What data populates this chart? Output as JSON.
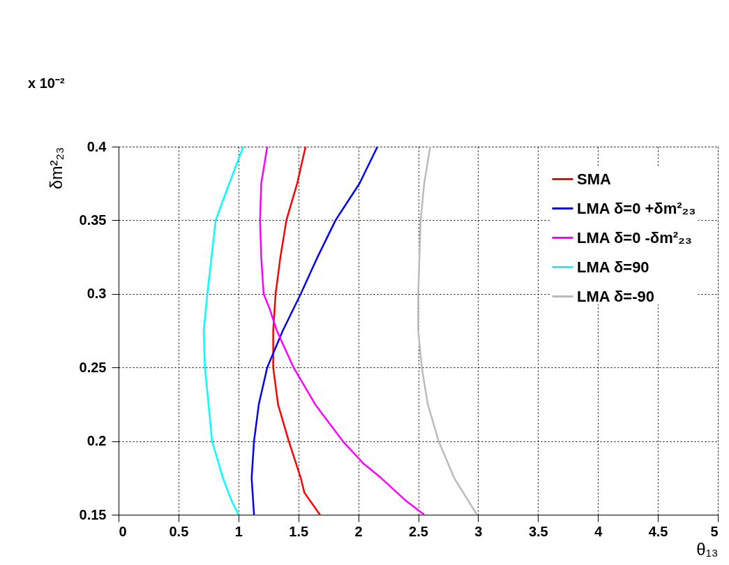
{
  "chart_data": {
    "type": "line",
    "xlabel": "θ₁₃",
    "ylabel": "δm²₂₃",
    "annotations": [
      "x 10⁻²"
    ],
    "xlim": [
      0,
      5
    ],
    "xticks": [
      0,
      0.5,
      1,
      1.5,
      2,
      2.5,
      3,
      3.5,
      4,
      4.5,
      5
    ],
    "ylim": [
      0.15,
      0.4
    ],
    "yticks": [
      0.15,
      0.2,
      0.25,
      0.3,
      0.35,
      0.4
    ],
    "grid": true,
    "legend": "top right",
    "marker": "none",
    "line_style": "solid",
    "series": [
      {
        "name": "SMA",
        "color": "#ff0000",
        "x": [
          1.56,
          1.49,
          1.4,
          1.35,
          1.31,
          1.29,
          1.29,
          1.33,
          1.42,
          1.52,
          1.55,
          1.68
        ],
        "values": [
          0.4,
          0.375,
          0.35,
          0.325,
          0.3,
          0.275,
          0.25,
          0.225,
          0.2,
          0.175,
          0.165,
          0.15
        ]
      },
      {
        "name": "LMA δ=0 +δm²₂₃",
        "color": "#0000ff",
        "x": [
          2.16,
          2.01,
          1.81,
          1.66,
          1.52,
          1.37,
          1.24,
          1.17,
          1.13,
          1.11,
          1.13
        ],
        "values": [
          0.4,
          0.375,
          0.35,
          0.325,
          0.3,
          0.275,
          0.25,
          0.225,
          0.2,
          0.175,
          0.15
        ]
      },
      {
        "name": "LMA δ=0 -δm²₂₃",
        "color": "#ff00ff",
        "x": [
          1.24,
          1.19,
          1.18,
          1.19,
          1.21,
          1.26,
          1.32,
          1.46,
          1.64,
          1.87,
          2.04,
          2.19,
          2.39,
          2.55
        ],
        "values": [
          0.4,
          0.375,
          0.35,
          0.325,
          0.3,
          0.29,
          0.275,
          0.25,
          0.225,
          0.2,
          0.185,
          0.175,
          0.16,
          0.15
        ]
      },
      {
        "name": "LMA δ=90",
        "color": "#00ffff",
        "x": [
          1.04,
          0.9,
          0.81,
          0.74,
          0.71,
          0.72,
          0.75,
          0.78,
          0.87,
          0.94,
          1.0
        ],
        "values": [
          0.4,
          0.37,
          0.35,
          0.3,
          0.275,
          0.25,
          0.225,
          0.2,
          0.175,
          0.16,
          0.15
        ]
      },
      {
        "name": "LMA δ=-90",
        "color": "#bbbbbb",
        "x": [
          2.6,
          2.55,
          2.52,
          2.5,
          2.5,
          2.53,
          2.58,
          2.67,
          2.8,
          2.99
        ],
        "values": [
          0.4,
          0.375,
          0.35,
          0.3,
          0.275,
          0.25,
          0.225,
          0.2,
          0.175,
          0.15
        ]
      }
    ]
  }
}
